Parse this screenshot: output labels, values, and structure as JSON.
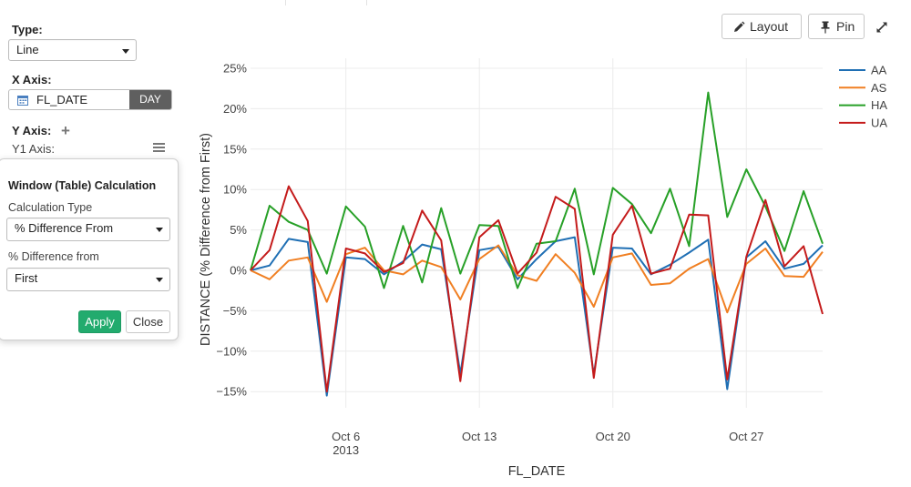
{
  "panel": {
    "type_label": "Type:",
    "type_value": "Line",
    "xaxis_label": "X Axis:",
    "xaxis_field": "FL_DATE",
    "xaxis_unit": "DAY",
    "yaxis_label": "Y Axis:",
    "y1_label": "Y1 Axis:"
  },
  "popover": {
    "title": "Window (Table) Calculation",
    "calc_type_label": "Calculation Type",
    "calc_type_value": "% Difference From",
    "diff_from_label": "% Difference from",
    "diff_from_value": "First",
    "apply_label": "Apply",
    "close_label": "Close"
  },
  "toolbar": {
    "layout_label": "Layout",
    "pin_label": "Pin"
  },
  "colors": {
    "accent_green": "#22ab6e"
  },
  "chart_data": {
    "type": "line",
    "xlabel": "FL_DATE",
    "ylabel": "DISTANCE (% Difference from First)",
    "x_start": "2013-10-01",
    "x_end": "2013-10-31",
    "xlim": [
      "2013-10-01",
      "2013-10-31"
    ],
    "ylim": [
      -17,
      26
    ],
    "y_ticks": [
      {
        "value": 25,
        "label": "25%"
      },
      {
        "value": 20,
        "label": "20%"
      },
      {
        "value": 15,
        "label": "15%"
      },
      {
        "value": 10,
        "label": "10%"
      },
      {
        "value": 5,
        "label": "5%"
      },
      {
        "value": 0,
        "label": "0%"
      },
      {
        "value": -5,
        "label": "−5%"
      },
      {
        "value": -10,
        "label": "−10%"
      },
      {
        "value": -15,
        "label": "−15%"
      }
    ],
    "x_ticks": [
      {
        "date": "2013-10-06",
        "label": "Oct 6",
        "sublabel": "2013"
      },
      {
        "date": "2013-10-13",
        "label": "Oct 13",
        "sublabel": ""
      },
      {
        "date": "2013-10-20",
        "label": "Oct 20",
        "sublabel": ""
      },
      {
        "date": "2013-10-27",
        "label": "Oct 27",
        "sublabel": ""
      }
    ],
    "grid": true,
    "legend_position": "right",
    "series": [
      {
        "name": "AA",
        "color": "#1f6fb4",
        "values": [
          0,
          0.6,
          3.9,
          3.5,
          -15.5,
          1.6,
          1.4,
          -0.5,
          1.1,
          3.2,
          2.6,
          -12.8,
          2.5,
          2.9,
          -1.1,
          1.4,
          3.6,
          4.1,
          -12.9,
          2.8,
          2.7,
          -0.5,
          0.7,
          2.2,
          3.8,
          -14.7,
          1.6,
          3.6,
          0.2,
          0.8,
          3.1
        ]
      },
      {
        "name": "AS",
        "color": "#f07f22",
        "values": [
          0,
          -1.1,
          1.2,
          1.6,
          -3.9,
          2.0,
          2.8,
          0.0,
          -0.5,
          1.2,
          0.4,
          -3.6,
          1.4,
          3.1,
          -0.6,
          -1.3,
          2.0,
          -0.3,
          -4.5,
          1.6,
          2.1,
          -1.8,
          -1.6,
          0.2,
          1.4,
          -5.2,
          0.8,
          2.7,
          -0.7,
          -0.8,
          2.3
        ]
      },
      {
        "name": "HA",
        "color": "#27a027",
        "values": [
          0,
          8.0,
          6.0,
          5.0,
          -0.4,
          7.9,
          5.4,
          -2.2,
          5.5,
          -1.5,
          7.7,
          -0.4,
          5.6,
          5.5,
          -2.2,
          3.3,
          3.6,
          10.1,
          -0.5,
          10.2,
          8.2,
          4.6,
          10.1,
          3.0,
          22.0,
          6.6,
          12.5,
          7.9,
          2.4,
          9.8,
          3.3
        ]
      },
      {
        "name": "UA",
        "color": "#c41b1b",
        "values": [
          0,
          2.5,
          10.4,
          6.1,
          -15.0,
          2.7,
          2.1,
          -0.2,
          0.9,
          7.4,
          3.7,
          -13.7,
          4.1,
          6.2,
          -0.4,
          2.2,
          9.1,
          7.6,
          -13.3,
          4.4,
          8.0,
          -0.4,
          0.2,
          6.9,
          6.8,
          -13.5,
          1.7,
          8.7,
          0.5,
          3.0,
          -5.4
        ]
      }
    ]
  }
}
